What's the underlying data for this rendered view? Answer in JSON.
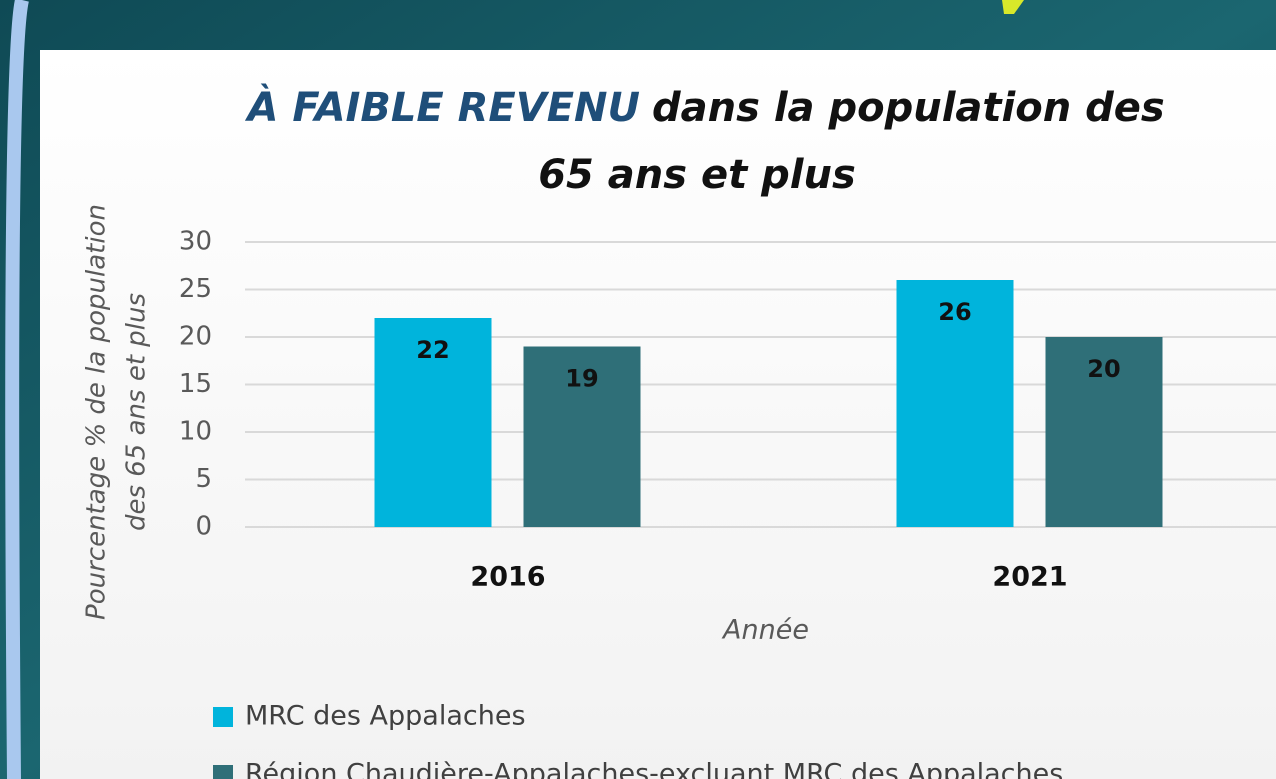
{
  "chart_data": {
    "type": "bar",
    "title": [
      "À FAIBLE REVENU",
      "dans la population des",
      "65 ans et plus"
    ],
    "y_label": [
      "Pourcentage % de la population",
      "des 65 ans et plus"
    ],
    "x_label": "Année",
    "categories": [
      "2016",
      "2021"
    ],
    "series": [
      {
        "name": "MRC des Appalaches",
        "color": "#00b4dc",
        "values": [
          22,
          26
        ]
      },
      {
        "name": "Région Chaudière-Appalaches-excluant MRC des Appalaches",
        "color": "#2f6f78",
        "values": [
          19,
          20
        ]
      }
    ],
    "ylim": [
      0,
      30
    ],
    "yticks": [
      0,
      5,
      10,
      15,
      20,
      25,
      30
    ],
    "grid": true
  }
}
